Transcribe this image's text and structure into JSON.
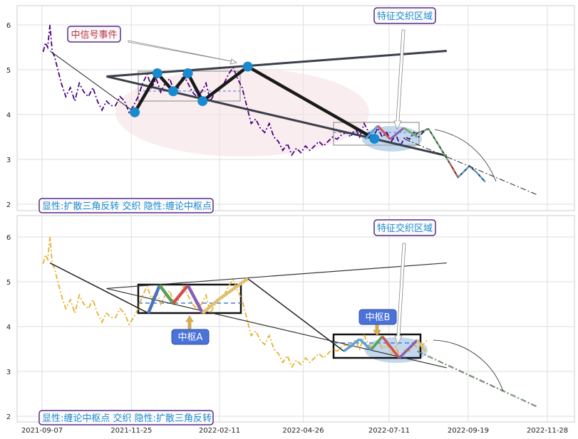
{
  "chart_data": [
    {
      "type": "line",
      "ylim": [
        1.85,
        6.45
      ],
      "yticks": [
        "2",
        "3",
        "4",
        "5",
        "6"
      ],
      "xticks": [],
      "grid": true,
      "series": [
        {
          "color": "#4b0082",
          "x": [
            "2021-09-08",
            "2021-09-10",
            "2021-09-12",
            "2021-09-14",
            "2021-09-16",
            "2021-09-18",
            "2021-09-21",
            "2021-09-24",
            "2021-09-28",
            "2021-10-02",
            "2021-10-06",
            "2021-10-10",
            "2021-10-14",
            "2021-10-18",
            "2021-10-22",
            "2021-10-26",
            "2021-10-30",
            "2021-11-03",
            "2021-11-07",
            "2021-11-11",
            "2021-11-15",
            "2021-11-19",
            "2021-11-23",
            "2021-11-27",
            "2021-12-01",
            "2021-12-05",
            "2021-12-09",
            "2021-12-13",
            "2021-12-17",
            "2021-12-21",
            "2021-12-25",
            "2021-12-29",
            "2022-01-02",
            "2022-01-06",
            "2022-01-10",
            "2022-01-14",
            "2022-01-18",
            "2022-01-22",
            "2022-01-26",
            "2022-01-30",
            "2022-02-03",
            "2022-02-07",
            "2022-02-11",
            "2022-02-15",
            "2022-02-19",
            "2022-02-23",
            "2022-02-27",
            "2022-03-03",
            "2022-03-07",
            "2022-03-11",
            "2022-03-15",
            "2022-03-19",
            "2022-03-23",
            "2022-03-27",
            "2022-03-31",
            "2022-04-04",
            "2022-04-08",
            "2022-04-12",
            "2022-04-16",
            "2022-04-20",
            "2022-04-24",
            "2022-04-28",
            "2022-05-02",
            "2022-05-06",
            "2022-05-10",
            "2022-05-14",
            "2022-05-18",
            "2022-05-22",
            "2022-05-26",
            "2022-05-30",
            "2022-06-03",
            "2022-06-07",
            "2022-06-11",
            "2022-06-15",
            "2022-06-19",
            "2022-06-23",
            "2022-06-27",
            "2022-07-01",
            "2022-07-05",
            "2022-07-09",
            "2022-07-13",
            "2022-07-17",
            "2022-07-21",
            "2022-07-25",
            "2022-07-29",
            "2022-08-02",
            "2022-08-06",
            "2022-08-10",
            "2022-08-14"
          ],
          "y": [
            5.4,
            5.6,
            5.5,
            6.0,
            5.4,
            5.3,
            5.0,
            4.7,
            4.4,
            4.6,
            4.3,
            4.7,
            4.5,
            4.4,
            4.6,
            4.3,
            4.1,
            4.3,
            4.2,
            4.2,
            4.4,
            4.3,
            4.05,
            4.2,
            4.4,
            4.7,
            4.9,
            4.6,
            4.8,
            4.5,
            4.7,
            4.8,
            4.5,
            4.6,
            4.9,
            4.7,
            4.5,
            4.4,
            4.5,
            4.7,
            4.3,
            4.5,
            4.6,
            4.7,
            4.9,
            5.05,
            4.8,
            4.6,
            4.2,
            3.8,
            3.9,
            3.7,
            3.6,
            3.8,
            3.5,
            3.4,
            3.2,
            3.35,
            3.1,
            3.25,
            3.15,
            3.3,
            3.2,
            3.3,
            3.4,
            3.3,
            3.4,
            3.5,
            3.45,
            3.55,
            3.6,
            3.5,
            3.7,
            3.5,
            3.8,
            3.6,
            3.5,
            3.7,
            3.5,
            3.6,
            3.4,
            3.55,
            3.3,
            3.5,
            3.45,
            3.6,
            3.5,
            3.6,
            3.7
          ]
        },
        {
          "color": "#e6b030",
          "x": [
            "2021-09-08",
            "2021-09-10",
            "2021-09-12",
            "2021-09-14",
            "2021-09-16",
            "2021-09-18",
            "2021-09-21",
            "2021-09-24",
            "2021-09-28",
            "2021-10-02",
            "2021-10-06",
            "2021-10-10",
            "2021-10-14",
            "2021-10-18",
            "2021-10-22",
            "2021-10-26",
            "2021-10-30",
            "2021-11-03",
            "2021-11-07",
            "2021-11-11",
            "2021-11-15",
            "2021-11-19",
            "2021-11-23",
            "2021-11-27",
            "2021-12-01",
            "2021-12-05",
            "2021-12-09",
            "2021-12-13",
            "2021-12-17",
            "2021-12-21",
            "2021-12-25",
            "2021-12-29",
            "2022-01-02",
            "2022-01-06",
            "2022-01-10",
            "2022-01-14",
            "2022-01-18",
            "2022-01-22",
            "2022-01-26",
            "2022-01-30",
            "2022-02-03",
            "2022-02-07",
            "2022-02-11",
            "2022-02-15",
            "2022-02-19",
            "2022-02-23",
            "2022-02-27",
            "2022-03-03",
            "2022-03-07",
            "2022-03-11",
            "2022-03-15",
            "2022-03-19",
            "2022-03-23",
            "2022-03-27",
            "2022-03-31",
            "2022-04-04",
            "2022-04-08",
            "2022-04-12",
            "2022-04-16",
            "2022-04-20",
            "2022-04-24",
            "2022-04-28",
            "2022-05-02",
            "2022-05-06",
            "2022-05-10",
            "2022-05-14",
            "2022-05-18",
            "2022-05-22",
            "2022-05-26",
            "2022-05-30",
            "2022-06-03",
            "2022-06-07",
            "2022-06-11",
            "2022-06-15",
            "2022-06-19",
            "2022-06-23",
            "2022-06-27",
            "2022-07-01",
            "2022-07-05",
            "2022-07-09",
            "2022-07-13",
            "2022-07-17",
            "2022-07-21",
            "2022-07-25",
            "2022-07-29",
            "2022-08-02",
            "2022-08-06",
            "2022-08-10",
            "2022-08-14"
          ],
          "y": [
            5.4,
            5.6,
            5.5,
            6.0,
            5.4,
            5.3,
            5.0,
            4.7,
            4.4,
            4.6,
            4.3,
            4.7,
            4.5,
            4.4,
            4.6,
            4.3,
            4.1,
            4.3,
            4.2,
            4.2,
            4.4,
            4.3,
            4.05,
            4.2,
            4.4,
            4.7,
            4.9,
            4.6,
            4.8,
            4.5,
            4.7,
            4.8,
            4.5,
            4.6,
            4.9,
            4.7,
            4.5,
            4.4,
            4.5,
            4.7,
            4.3,
            4.5,
            4.6,
            4.7,
            4.9,
            5.05,
            4.8,
            4.6,
            4.2,
            3.8,
            3.9,
            3.7,
            3.6,
            3.8,
            3.5,
            3.4,
            3.2,
            3.35,
            3.1,
            3.25,
            3.15,
            3.3,
            3.2,
            3.3,
            3.4,
            3.3,
            3.4,
            3.5,
            3.45,
            3.55,
            3.6,
            3.5,
            3.7,
            3.5,
            3.8,
            3.6,
            3.5,
            3.7,
            3.5,
            3.6,
            3.4,
            3.55,
            3.3,
            3.5,
            3.45,
            3.6,
            3.5,
            3.6,
            3.7
          ]
        }
      ],
      "triangle_pivots": {
        "x": [
          "2021-11-28",
          "2021-12-18",
          "2022-01-01",
          "2022-01-14",
          "2022-01-27",
          "2022-03-08",
          "2022-06-28"
        ],
        "y": [
          4.05,
          4.92,
          4.52,
          4.92,
          4.3,
          5.07,
          3.46
        ]
      },
      "channel": {
        "upper": {
          "x": [
            "2021-11-03",
            "2022-08-31"
          ],
          "y": [
            4.85,
            5.42
          ]
        },
        "lower": {
          "x": [
            "2021-11-03",
            "2022-08-31"
          ],
          "y": [
            4.85,
            3.08
          ]
        }
      },
      "forecast": {
        "x": [
          "2022-08-01",
          "2022-08-15",
          "2022-09-03",
          "2022-09-10",
          "2022-09-20",
          "2022-09-26",
          "2022-10-04"
        ],
        "y": [
          3.55,
          3.68,
          2.9,
          2.6,
          2.85,
          2.72,
          2.5
        ]
      },
      "projection": {
        "x": [
          "2022-07-25",
          "2022-11-20"
        ],
        "y": [
          3.45,
          2.2
        ]
      },
      "annotations": [
        {
          "text": "中信号事件",
          "color": "#c03040"
        },
        {
          "text": "特征交织区域",
          "color": "#1a8ad0"
        },
        {
          "text": "显性:扩散三角反转 交织 隐性:缠论中枢点",
          "color": "#1a8ad0"
        }
      ]
    },
    {
      "type": "line",
      "ylim": [
        1.85,
        6.45
      ],
      "yticks": [
        "2",
        "3",
        "4",
        "5",
        "6"
      ],
      "xticks": [
        "2021-09-07",
        "2021-11-25",
        "2022-02-11",
        "2022-04-26",
        "2022-07-11",
        "2022-09-19",
        "2022-11-28"
      ],
      "grid": true,
      "zhongshu": [
        {
          "label": "中枢A",
          "x": [
            "2021-12-10",
            "2022-03-08"
          ],
          "y": [
            4.3,
            4.92
          ],
          "mid": 4.55
        },
        {
          "label": "中枢B",
          "x": [
            "2022-06-01",
            "2022-08-12"
          ],
          "y": [
            3.28,
            3.8
          ],
          "mid": 3.58
        }
      ],
      "bi_segments": {
        "x": [
          "2021-12-10",
          "2021-12-20",
          "2022-01-01",
          "2022-01-14",
          "2022-01-27",
          "2022-02-10",
          "2022-03-08"
        ],
        "y": [
          4.3,
          4.92,
          4.52,
          4.92,
          4.3,
          4.6,
          5.07
        ]
      },
      "annotations": [
        {
          "text": "中枢A",
          "color": "#ffffff"
        },
        {
          "text": "中枢B",
          "color": "#ffffff"
        },
        {
          "text": "特征交织区域",
          "color": "#1a8ad0"
        },
        {
          "text": "显性:缠论中枢点 交织 隐性:扩散三角反转",
          "color": "#1a8ad0"
        }
      ]
    }
  ]
}
